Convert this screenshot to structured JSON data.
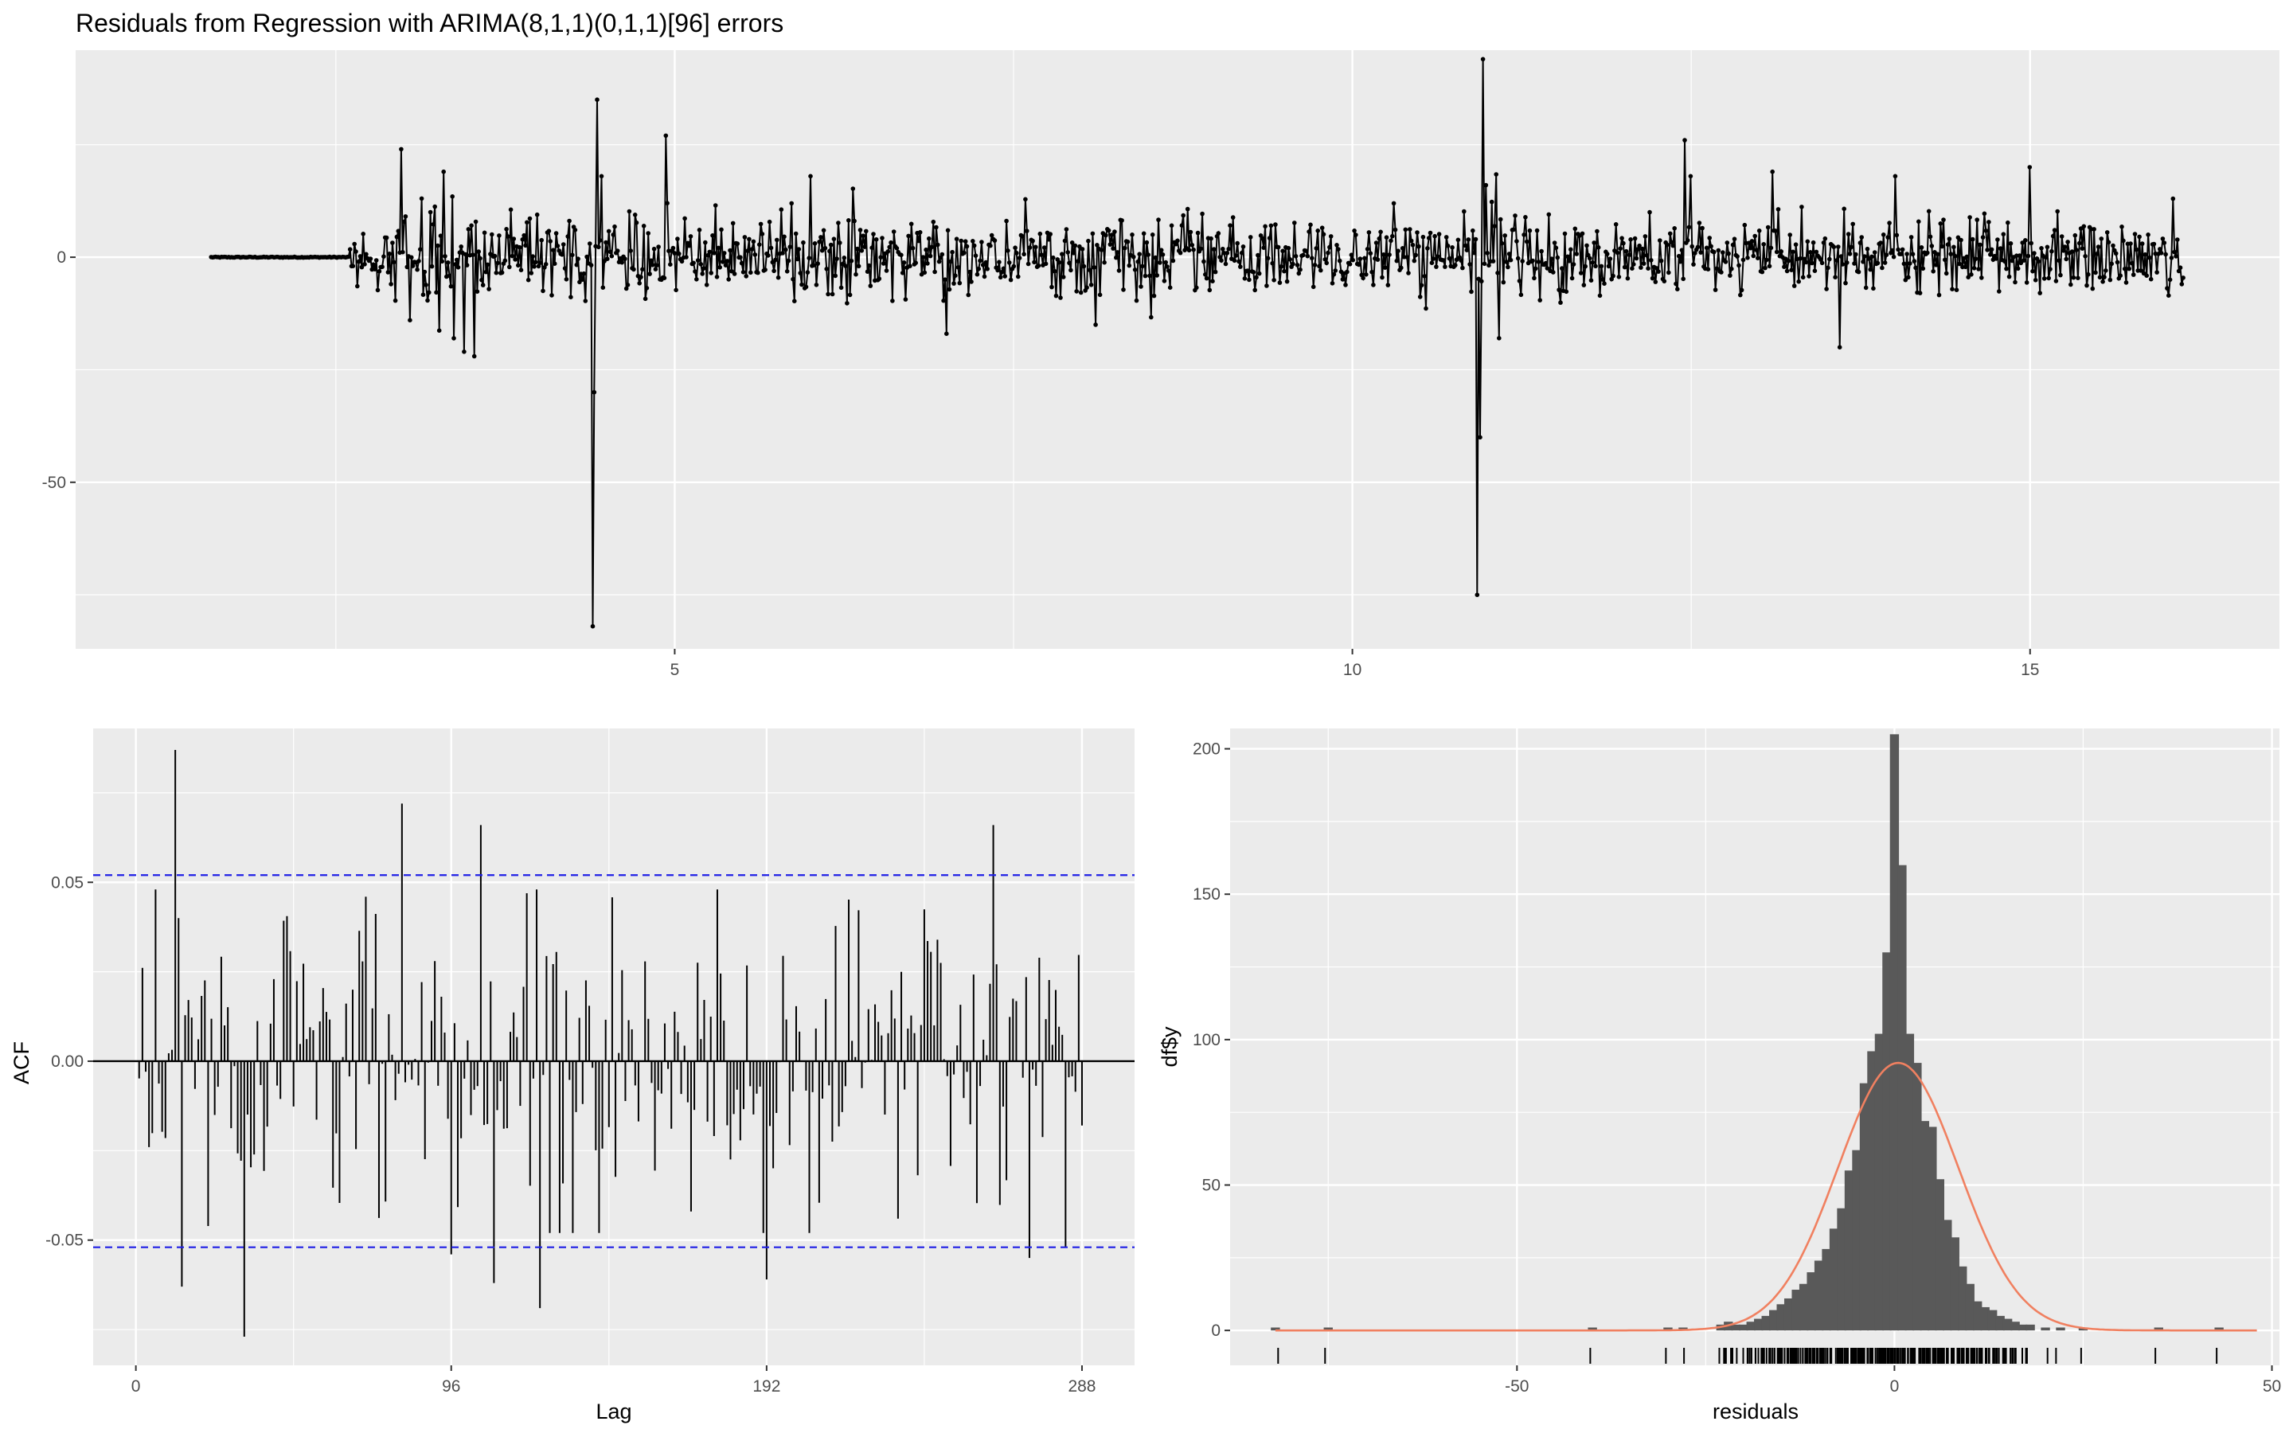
{
  "title": "Residuals from Regression with ARIMA(8,1,1)(0,1,1)[96] errors",
  "colors": {
    "panel_bg": "#ebebeb",
    "grid": "#ffffff",
    "series": "#000000",
    "ci_line": "#1f1fe6",
    "bars": "#595959",
    "density": "#f08060"
  },
  "chart_data": [
    {
      "id": "residuals_ts",
      "type": "line",
      "title": "Residuals from Regression with ARIMA(8,1,1)(0,1,1)[96] errors",
      "xlabel": "",
      "ylabel": "",
      "xlim": [
        0.58,
        16.84
      ],
      "ylim": [
        -87,
        46
      ],
      "x_ticks": [
        5,
        10,
        15
      ],
      "x_tick_labels": [
        "5",
        "10",
        "15"
      ],
      "y_ticks": [
        0,
        -50
      ],
      "y_tick_labels": [
        "0",
        "-50"
      ],
      "points": "line with dots",
      "x_start": 1.58,
      "x_end": 16.13,
      "flat_until": 2.6,
      "noise_sd": 4.0,
      "spikes": [
        [
          2.98,
          24
        ],
        [
          3.05,
          -14
        ],
        [
          3.3,
          19
        ],
        [
          3.37,
          -18
        ],
        [
          3.45,
          -21
        ],
        [
          3.52,
          -22
        ],
        [
          4.39,
          -82
        ],
        [
          4.41,
          -30
        ],
        [
          4.43,
          35
        ],
        [
          4.46,
          18
        ],
        [
          4.93,
          27
        ],
        [
          4.95,
          12
        ],
        [
          6.0,
          18
        ],
        [
          7.0,
          -17
        ],
        [
          8.1,
          -15
        ],
        [
          10.92,
          -75
        ],
        [
          10.94,
          -40
        ],
        [
          10.96,
          44
        ],
        [
          10.98,
          16
        ],
        [
          12.45,
          26
        ],
        [
          12.5,
          18
        ],
        [
          13.1,
          19
        ],
        [
          13.6,
          -20
        ],
        [
          14.0,
          18
        ],
        [
          15.0,
          20
        ],
        [
          16.05,
          13
        ]
      ]
    },
    {
      "id": "acf",
      "type": "bar",
      "xlabel": "Lag",
      "ylabel": "ACF",
      "xlim": [
        -13,
        304
      ],
      "ylim": [
        -0.085,
        0.093
      ],
      "x_ticks": [
        0,
        96,
        192,
        288
      ],
      "x_tick_labels": [
        "0",
        "96",
        "192",
        "288"
      ],
      "y_ticks": [
        0.05,
        0.0,
        -0.05
      ],
      "y_tick_labels": [
        "0.05",
        "0.00",
        "-0.05"
      ],
      "ci": [
        0.052,
        -0.052
      ],
      "lags": 288,
      "notable_lags": [
        [
          12,
          0.087
        ],
        [
          13,
          0.04
        ],
        [
          14,
          -0.063
        ],
        [
          33,
          -0.077
        ],
        [
          81,
          0.072
        ],
        [
          96,
          -0.054
        ],
        [
          105,
          0.066
        ],
        [
          109,
          -0.062
        ],
        [
          123,
          -0.069
        ],
        [
          192,
          -0.061
        ],
        [
          261,
          0.066
        ],
        [
          272,
          -0.055
        ],
        [
          283,
          -0.052
        ]
      ]
    },
    {
      "id": "histogram",
      "type": "bar",
      "xlabel": "residuals",
      "ylabel": "df$y",
      "xlim": [
        -88,
        51
      ],
      "ylim": [
        -12,
        207
      ],
      "x_ticks": [
        -50,
        0,
        50
      ],
      "x_tick_labels": [
        "-50",
        "0",
        "50"
      ],
      "y_ticks": [
        0,
        50,
        100,
        150,
        200
      ],
      "y_tick_labels": [
        "0",
        "50",
        "100",
        "150",
        "200"
      ],
      "bin_width": 1.2,
      "bins": [
        [
          -82,
          1
        ],
        [
          -75,
          1
        ],
        [
          -40,
          1
        ],
        [
          -30,
          1
        ],
        [
          -28,
          1
        ],
        [
          -23,
          2
        ],
        [
          -22,
          3
        ],
        [
          -21,
          2
        ],
        [
          -20,
          2
        ],
        [
          -19,
          3
        ],
        [
          -18,
          4
        ],
        [
          -17,
          5
        ],
        [
          -16,
          7
        ],
        [
          -15,
          9
        ],
        [
          -14,
          11
        ],
        [
          -13,
          14
        ],
        [
          -12,
          16
        ],
        [
          -11,
          20
        ],
        [
          -10,
          24
        ],
        [
          -9,
          28
        ],
        [
          -8,
          35
        ],
        [
          -7,
          42
        ],
        [
          -6,
          55
        ],
        [
          -5,
          62
        ],
        [
          -4,
          85
        ],
        [
          -3,
          96
        ],
        [
          -2,
          102
        ],
        [
          -1,
          130
        ],
        [
          0,
          205
        ],
        [
          1,
          160
        ],
        [
          2,
          102
        ],
        [
          3,
          92
        ],
        [
          4,
          72
        ],
        [
          5,
          70
        ],
        [
          6,
          52
        ],
        [
          7,
          38
        ],
        [
          8,
          32
        ],
        [
          9,
          22
        ],
        [
          10,
          16
        ],
        [
          11,
          10
        ],
        [
          12,
          8
        ],
        [
          13,
          7
        ],
        [
          14,
          5
        ],
        [
          15,
          4
        ],
        [
          16,
          3
        ],
        [
          17,
          2
        ],
        [
          18,
          2
        ],
        [
          20,
          1
        ],
        [
          22,
          1
        ],
        [
          25,
          1
        ],
        [
          35,
          1
        ],
        [
          43,
          1
        ]
      ],
      "density_curve": {
        "mean": 0.5,
        "sd": 8.0,
        "peak": 92
      },
      "rug": "residual values along x axis"
    }
  ]
}
